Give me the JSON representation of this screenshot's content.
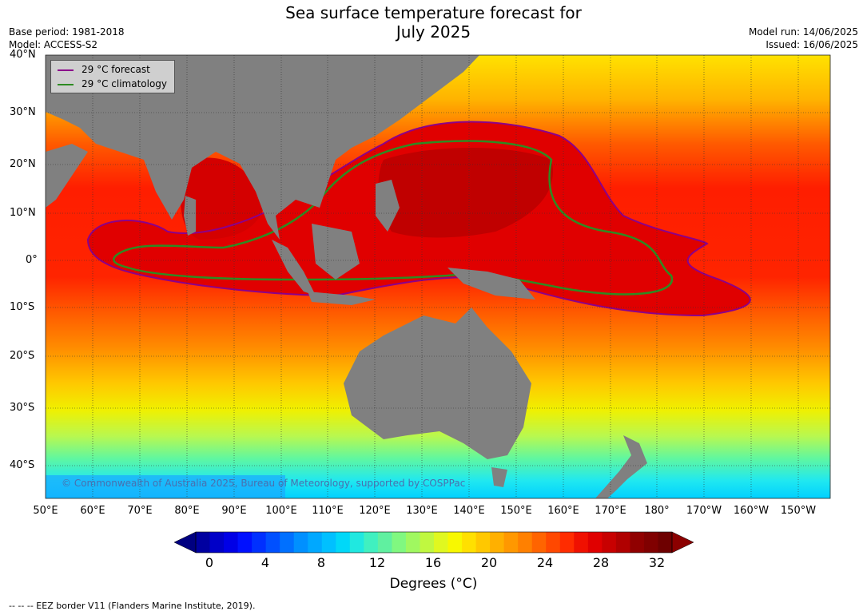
{
  "title_line1": "Sea surface temperature forecast for",
  "title_line2": "July 2025",
  "meta_left": [
    "Base period: 1981-2018",
    "Model: ACCESS-S2"
  ],
  "meta_right": [
    "Model run: 14/06/2025",
    "Issued: 16/06/2025"
  ],
  "legend": {
    "forecast_label": "29 °C  forecast",
    "forecast_color": "#8b008b",
    "climatology_label": "29 °C  climatology",
    "climatology_color": "#2e8b22"
  },
  "lat_labels": [
    "40°N",
    "30°N",
    "20°N",
    "10°N",
    "0°",
    "10°S",
    "20°S",
    "30°S",
    "40°S"
  ],
  "lon_labels": [
    "50°E",
    "60°E",
    "70°E",
    "80°E",
    "90°E",
    "100°E",
    "110°E",
    "120°E",
    "130°E",
    "140°E",
    "150°E",
    "160°E",
    "170°E",
    "180°",
    "170°W",
    "160°W",
    "150°W"
  ],
  "copyright": "© Commonwealth of Australia 2025, Bureau of Meteorology, supported by COSPPac",
  "colorbar": {
    "ticks": [
      "0",
      "4",
      "8",
      "12",
      "16",
      "20",
      "24",
      "28",
      "32"
    ],
    "label": "Degrees (°C)"
  },
  "footnote": "--  --  -- EEZ border V11 (Flanders Marine Institute, 2019).",
  "colors": {
    "land": "#808080",
    "warm": "#cc0000",
    "hot": "#b80000"
  }
}
